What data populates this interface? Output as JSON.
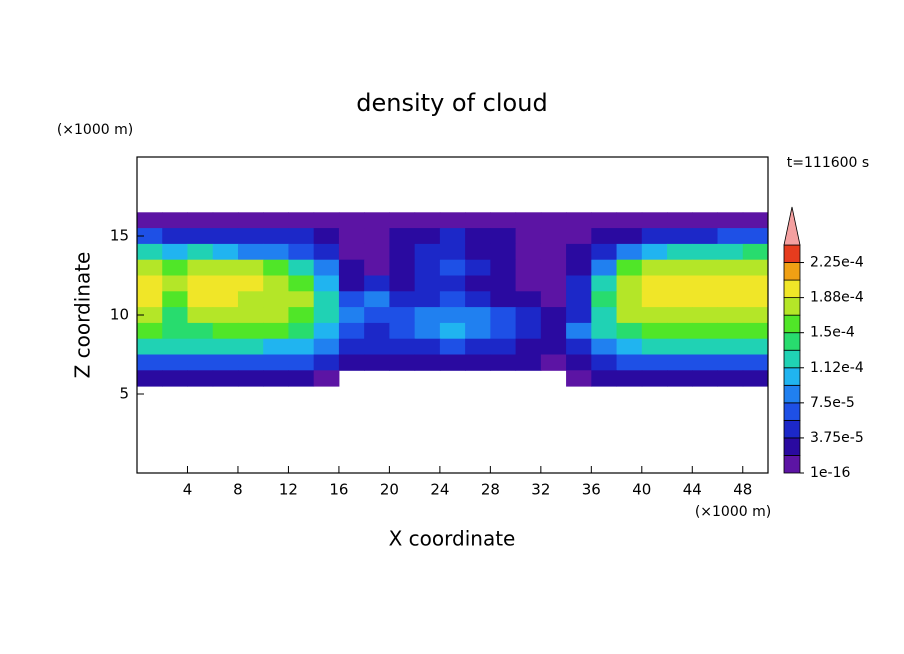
{
  "chart_data": {
    "type": "contour",
    "title": "density of cloud",
    "x_label": "X coordinate",
    "y_label": "Z coordinate",
    "x_unit": "(×1000 m)",
    "y_unit": "(×1000 m)",
    "annotation": "t=111600 s",
    "xlim": [
      0,
      50
    ],
    "ylim": [
      0,
      20
    ],
    "xticks": [
      4,
      8,
      12,
      16,
      20,
      24,
      28,
      32,
      36,
      40,
      44,
      48
    ],
    "yticks": [
      5,
      10,
      15
    ],
    "x": [
      1,
      3,
      5,
      7,
      9,
      11,
      13,
      15,
      17,
      19,
      21,
      23,
      25,
      27,
      29,
      31,
      33,
      35,
      37,
      39,
      41,
      43,
      45,
      47,
      49
    ],
    "y": [
      16,
      15,
      14,
      13,
      12,
      11,
      10,
      9,
      8,
      7,
      6
    ],
    "z": [
      [
        5e-06,
        5e-06,
        5e-06,
        5e-06,
        5e-06,
        5e-06,
        5e-06,
        5e-06,
        5e-06,
        5e-06,
        5e-06,
        5e-06,
        5e-06,
        5e-06,
        5e-06,
        5e-06,
        5e-06,
        5e-06,
        5e-06,
        5e-06,
        5e-06,
        5e-06,
        5e-06,
        5e-06,
        5e-06
      ],
      [
        6e-05,
        5e-05,
        5e-05,
        5e-05,
        5e-05,
        4e-05,
        4e-05,
        2e-05,
        1e-05,
        1e-05,
        2e-05,
        3e-05,
        4e-05,
        3e-05,
        2e-05,
        1e-05,
        1e-05,
        1e-05,
        2e-05,
        3e-05,
        4e-05,
        5e-05,
        5e-05,
        6e-05,
        7e-05
      ],
      [
        0.00013,
        0.00011,
        0.00012,
        0.00011,
        9e-05,
        9e-05,
        7e-05,
        4e-05,
        1.5e-05,
        1e-05,
        2e-05,
        4e-05,
        5e-05,
        3e-05,
        2e-05,
        1e-05,
        1e-05,
        2e-05,
        4e-05,
        8e-05,
        0.00011,
        0.00012,
        0.00013,
        0.00013,
        0.00014
      ],
      [
        0.00017,
        0.00016,
        0.00018,
        0.00018,
        0.00017,
        0.00016,
        0.00013,
        8e-05,
        2e-05,
        1.5e-05,
        3e-05,
        5e-05,
        6e-05,
        4e-05,
        2e-05,
        1.5e-05,
        1e-05,
        3e-05,
        8e-05,
        0.00015,
        0.00017,
        0.00018,
        0.00018,
        0.00018,
        0.00018
      ],
      [
        0.00019,
        0.00017,
        0.000195,
        0.0002,
        0.00019,
        0.00018,
        0.00016,
        0.00011,
        3e-05,
        4e-05,
        3e-05,
        5e-05,
        5e-05,
        3e-05,
        2e-05,
        1.5e-05,
        1e-05,
        5e-05,
        0.00012,
        0.00018,
        0.00019,
        0.000195,
        0.0002,
        0.000195,
        0.00019
      ],
      [
        0.00019,
        0.00016,
        0.00019,
        0.00019,
        0.000185,
        0.00018,
        0.00017,
        0.00013,
        6e-05,
        9e-05,
        4e-05,
        4e-05,
        6e-05,
        5e-05,
        3e-05,
        2e-05,
        1.5e-05,
        4e-05,
        0.00014,
        0.000185,
        0.00019,
        0.00019,
        0.000195,
        0.00019,
        0.00019
      ],
      [
        0.00017,
        0.00014,
        0.00017,
        0.00018,
        0.000175,
        0.00017,
        0.00016,
        0.00012,
        9e-05,
        7e-05,
        7e-05,
        8e-05,
        9e-05,
        8e-05,
        6e-05,
        4e-05,
        2e-05,
        5e-05,
        0.00013,
        0.00017,
        0.000175,
        0.000175,
        0.00018,
        0.00018,
        0.000175
      ],
      [
        0.00015,
        0.00014,
        0.00014,
        0.00015,
        0.00015,
        0.00015,
        0.00014,
        0.00011,
        6e-05,
        5e-05,
        7e-05,
        9e-05,
        0.0001,
        9e-05,
        7e-05,
        5e-05,
        3e-05,
        8e-05,
        0.00012,
        0.00014,
        0.00015,
        0.00015,
        0.00015,
        0.00015,
        0.00015
      ],
      [
        0.00012,
        0.00012,
        0.00012,
        0.00012,
        0.00012,
        0.00011,
        0.000105,
        9e-05,
        4e-05,
        4e-05,
        4e-05,
        5e-05,
        6e-05,
        5e-05,
        4e-05,
        3e-05,
        2e-05,
        5e-05,
        9e-05,
        0.00011,
        0.00012,
        0.00012,
        0.00012,
        0.00012,
        0.00012
      ],
      [
        7e-05,
        7e-05,
        7e-05,
        7e-05,
        6e-05,
        6e-05,
        6e-05,
        5e-05,
        3e-05,
        3e-05,
        2e-05,
        3e-05,
        3e-05,
        3e-05,
        2e-05,
        2e-05,
        1e-05,
        3e-05,
        5e-05,
        6e-05,
        7e-05,
        7e-05,
        7e-05,
        7e-05,
        7e-05
      ],
      [
        3e-05,
        3e-05,
        3e-05,
        3e-05,
        2e-05,
        2e-05,
        2e-05,
        1e-05,
        null,
        null,
        null,
        null,
        null,
        null,
        null,
        null,
        null,
        1e-05,
        2e-05,
        2e-05,
        3e-05,
        3e-05,
        3e-05,
        3e-05,
        3e-05
      ]
    ],
    "levels": [
      1e-16,
      1.875e-05,
      3.75e-05,
      5.625e-05,
      7.5e-05,
      9.375e-05,
      0.0001125,
      0.00013125,
      0.00015,
      0.00016875,
      0.0001875,
      0.00020625,
      0.000225
    ],
    "colors": [
      "#5c14a4",
      "#2a0aa0",
      "#1c28c8",
      "#1e50e6",
      "#2080f0",
      "#20b4f0",
      "#20d2b4",
      "#28dc6e",
      "#50e628",
      "#b4e628",
      "#f0e628",
      "#f0a014",
      "#e63c1e"
    ],
    "over_color": "#f4a0a0",
    "colorbar_ticks": [
      {
        "value": 1e-16,
        "label": "1e-16"
      },
      {
        "value": 3.75e-05,
        "label": "3.75e-5"
      },
      {
        "value": 7.5e-05,
        "label": "7.5e-5"
      },
      {
        "value": 0.0001125,
        "label": "1.12e-4"
      },
      {
        "value": 0.00015,
        "label": "1.5e-4"
      },
      {
        "value": 0.0001875,
        "label": "1.88e-4"
      },
      {
        "value": 0.000225,
        "label": "2.25e-4"
      }
    ]
  }
}
